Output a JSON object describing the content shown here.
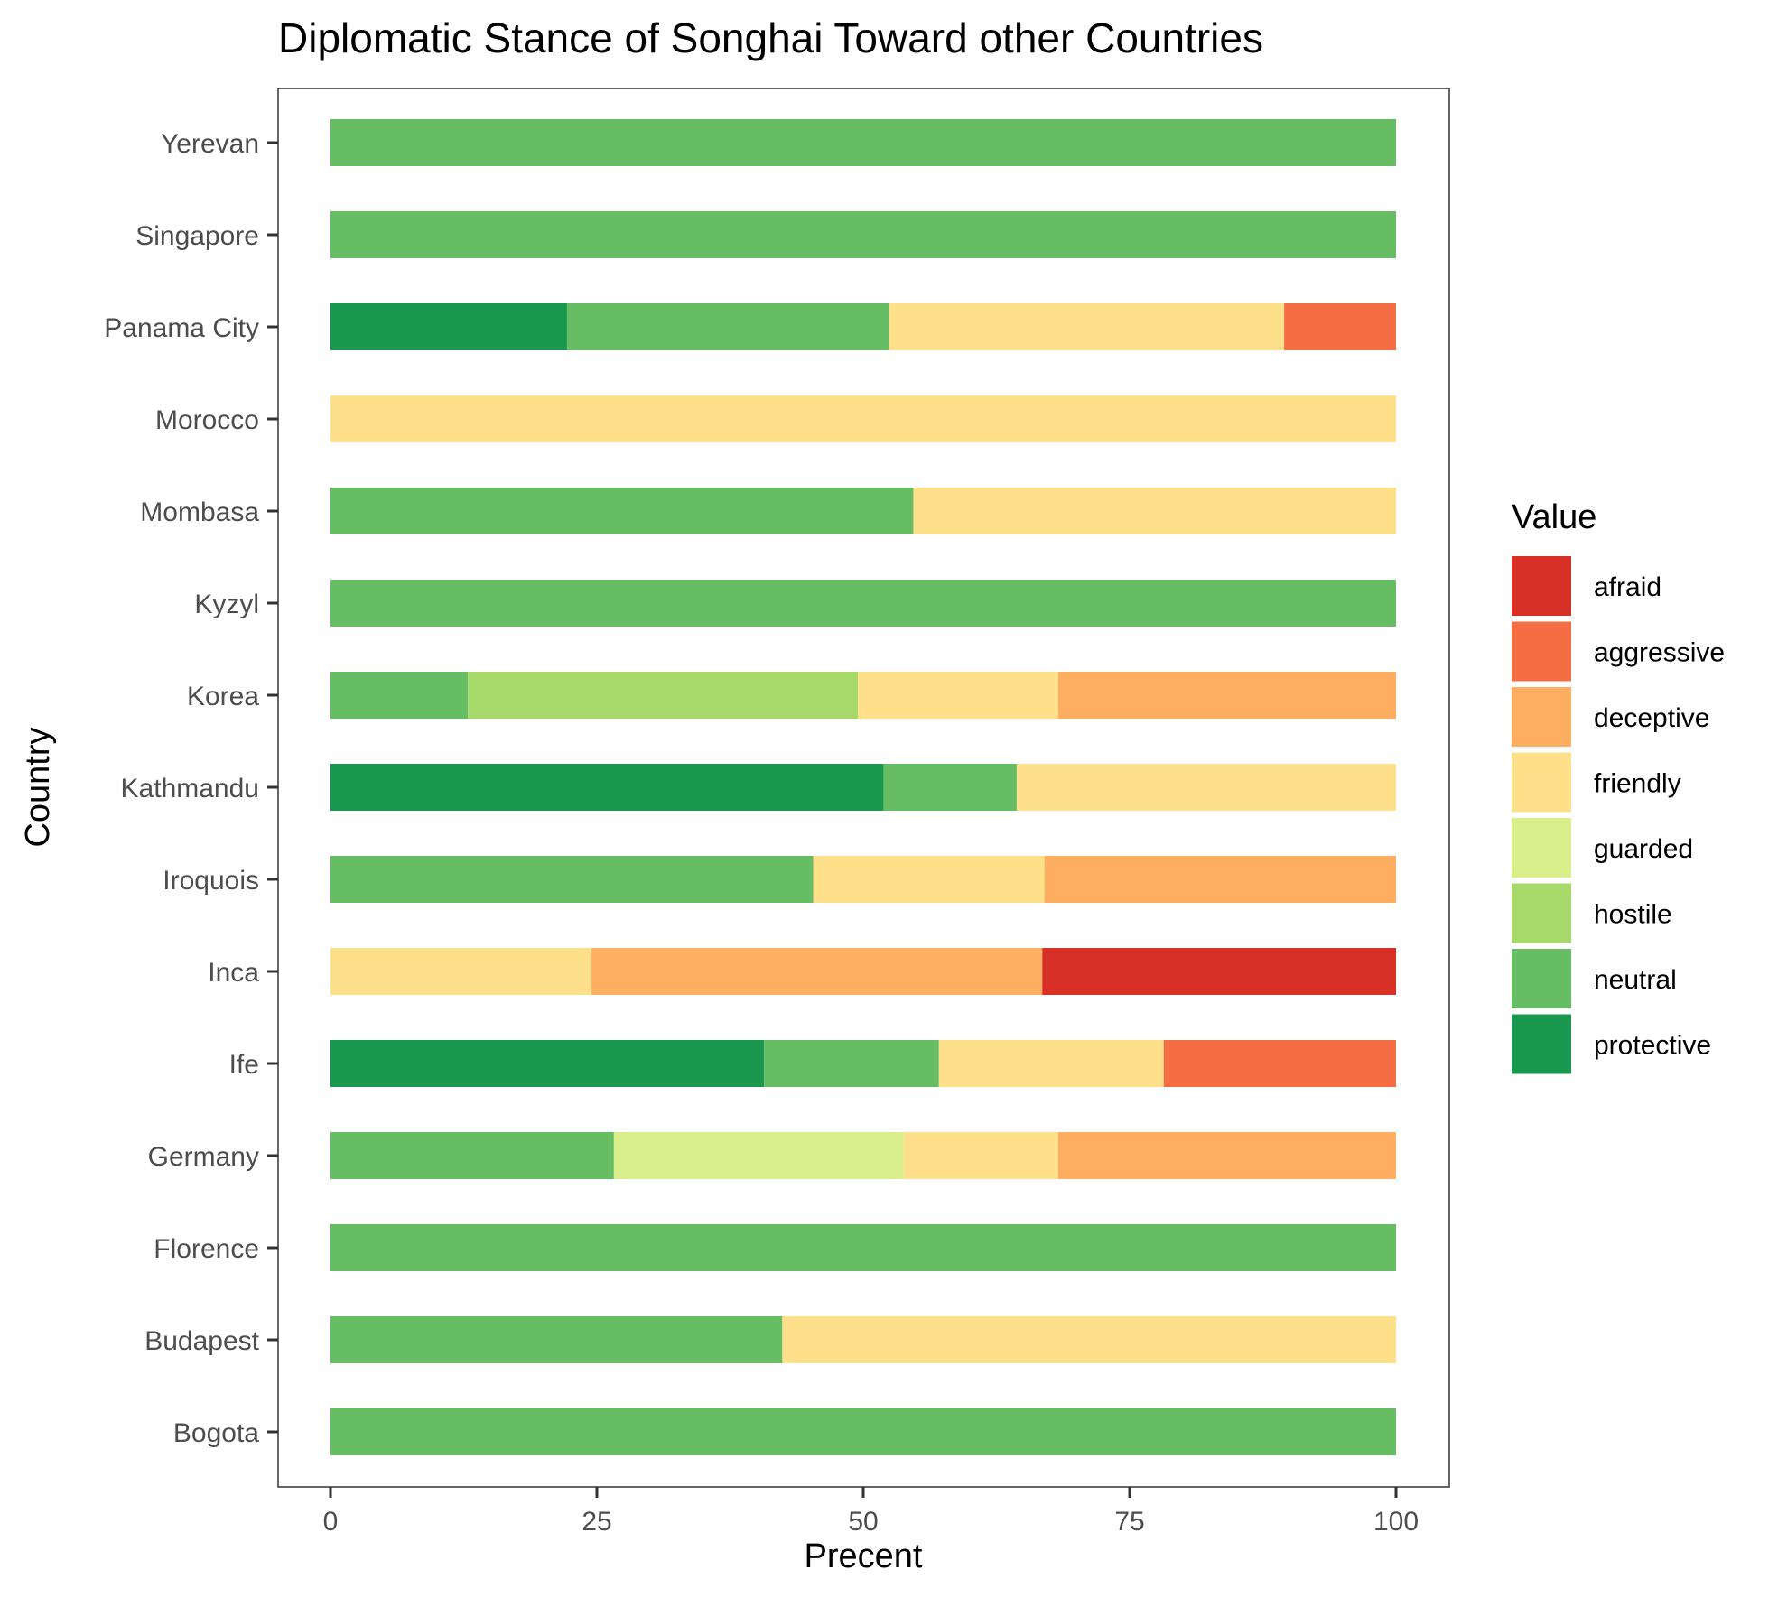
{
  "chart_data": {
    "type": "bar",
    "orientation": "horizontal",
    "stacked": true,
    "title": "Diplomatic Stance of Songhai Toward other Countries",
    "xlabel": "Precent",
    "ylabel": "Country",
    "xlim": [
      0,
      100
    ],
    "xticks": [
      0,
      25,
      50,
      75,
      100
    ],
    "grid": false,
    "legend": {
      "title": "Value",
      "position": "right",
      "entries": [
        "afraid",
        "aggressive",
        "deceptive",
        "friendly",
        "guarded",
        "hostile",
        "neutral",
        "protective"
      ]
    },
    "colors": {
      "afraid": "#d73027",
      "aggressive": "#f46d43",
      "deceptive": "#fdae61",
      "friendly": "#fee08b",
      "guarded": "#d9ef8b",
      "hostile": "#a6d96a",
      "neutral": "#66bd63",
      "protective": "#1a9850"
    },
    "stack_order": [
      "protective",
      "neutral",
      "hostile",
      "guarded",
      "friendly",
      "deceptive",
      "aggressive",
      "afraid"
    ],
    "categories": [
      "Yerevan",
      "Singapore",
      "Panama City",
      "Morocco",
      "Mombasa",
      "Kyzyl",
      "Korea",
      "Kathmandu",
      "Iroquois",
      "Inca",
      "Ife",
      "Germany",
      "Florence",
      "Budapest",
      "Bogota"
    ],
    "series": [
      {
        "name": "protective",
        "values": [
          0,
          0,
          22.2,
          0,
          0,
          0,
          0,
          51.9,
          0,
          0,
          40.7,
          0,
          0,
          0,
          0
        ]
      },
      {
        "name": "neutral",
        "values": [
          100,
          100,
          30.2,
          0,
          54.7,
          100,
          12.9,
          12.5,
          45.3,
          0,
          16.4,
          26.6,
          100,
          42.4,
          100
        ]
      },
      {
        "name": "hostile",
        "values": [
          0,
          0,
          0,
          0,
          0,
          0,
          36.6,
          0,
          0,
          0,
          0,
          0,
          0,
          0,
          0
        ]
      },
      {
        "name": "guarded",
        "values": [
          0,
          0,
          0,
          0,
          0,
          0,
          0,
          0,
          0,
          0,
          0,
          27.2,
          0,
          0,
          0
        ]
      },
      {
        "name": "friendly",
        "values": [
          0,
          0,
          37.1,
          100,
          45.3,
          0,
          18.8,
          35.6,
          21.7,
          24.5,
          21.1,
          14.5,
          0,
          57.6,
          0
        ]
      },
      {
        "name": "deceptive",
        "values": [
          0,
          0,
          0,
          0,
          0,
          0,
          31.7,
          0,
          33.0,
          42.3,
          0,
          31.7,
          0,
          0,
          0
        ]
      },
      {
        "name": "aggressive",
        "values": [
          0,
          0,
          10.5,
          0,
          0,
          0,
          0,
          0,
          0,
          0,
          21.8,
          0,
          0,
          0,
          0
        ]
      },
      {
        "name": "afraid",
        "values": [
          0,
          0,
          0,
          0,
          0,
          0,
          0,
          0,
          0,
          33.2,
          0,
          0,
          0,
          0,
          0
        ]
      }
    ]
  }
}
